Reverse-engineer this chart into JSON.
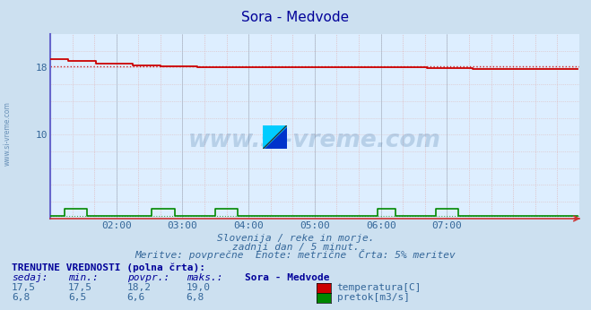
{
  "title": "Sora - Medvode",
  "title_color": "#000099",
  "bg_color": "#cce0f0",
  "plot_bg_color": "#ddeeff",
  "grid_color": "#bbccdd",
  "grid_color_dashed": "#cc9999",
  "axis_color_left": "#6666cc",
  "axis_color_bottom": "#cc3333",
  "tick_color": "#336699",
  "text_color": "#336699",
  "watermark_color": "#336699",
  "temp_color": "#cc0000",
  "flow_color": "#008800",
  "ymin": 0,
  "ymax": 22,
  "yticks": [
    10,
    18
  ],
  "xmin": 0,
  "xmax": 288,
  "xtick_labels": [
    "02:00",
    "03:00",
    "04:00",
    "05:00",
    "06:00",
    "07:00"
  ],
  "xtick_positions": [
    36,
    72,
    108,
    144,
    180,
    216
  ],
  "temp_avg": 18.2,
  "flow_avg_display": 0.5,
  "watermark": "www.si-vreme.com",
  "footnote1": "Slovenija / reke in morje.",
  "footnote2": "zadnji dan / 5 minut.",
  "footnote3": "Meritve: povprečne  Enote: metrične  Črta: 5% meritev",
  "table_header": "TRENUTNE VREDNOSTI (polna črta):",
  "col_headers": [
    "sedaj:",
    "min.:",
    "povpr.:",
    "maks.:",
    "Sora - Medvode"
  ],
  "row1": [
    "17,5",
    "17,5",
    "18,2",
    "19,0"
  ],
  "row2": [
    "6,8",
    "6,5",
    "6,6",
    "6,8"
  ],
  "row1_label": "temperatura[C]",
  "row2_label": "pretok[m3/s]",
  "side_watermark": "www.si-vreme.com"
}
